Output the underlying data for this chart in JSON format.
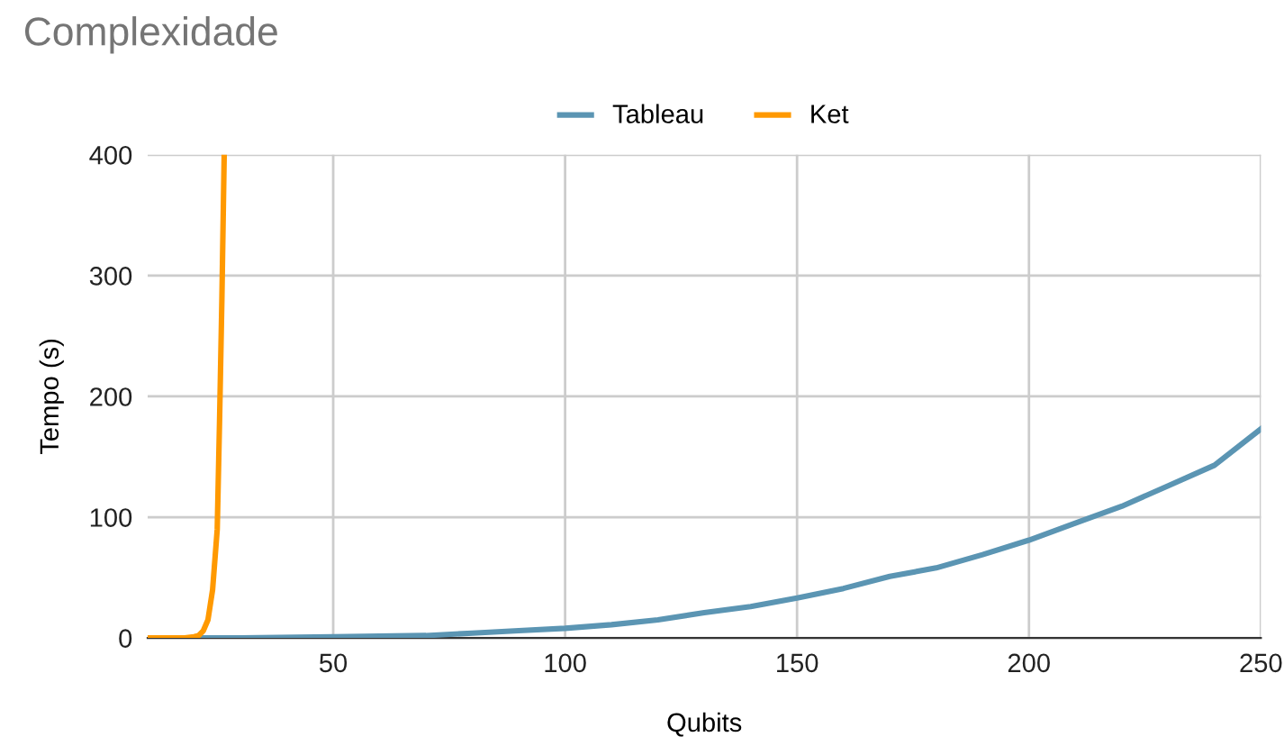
{
  "chart_data": {
    "type": "line",
    "title": "Complexidade",
    "xlabel": "Qubits",
    "ylabel": "Tempo (s)",
    "xlim": [
      10,
      250
    ],
    "xticks": [
      50,
      100,
      150,
      200,
      250
    ],
    "ylim": [
      0,
      400
    ],
    "yticks": [
      0,
      100,
      200,
      300,
      400
    ],
    "grid": true,
    "legend": "top",
    "marker": "none",
    "line_style": "solid",
    "series": [
      {
        "name": "Tableau",
        "color": "#5b95b3",
        "x": [
          10,
          30,
          50,
          70,
          80,
          90,
          100,
          110,
          120,
          130,
          140,
          150,
          160,
          170,
          180,
          190,
          200,
          210,
          220,
          230,
          240,
          250
        ],
        "values": [
          0,
          0,
          1,
          2,
          4,
          6,
          8,
          11,
          15,
          21,
          26,
          33,
          41,
          51,
          58,
          69,
          81,
          95,
          109,
          126,
          143,
          173
        ]
      },
      {
        "name": "Ket",
        "color": "#ff9900",
        "x": [
          10,
          18,
          20,
          21,
          22,
          23,
          24,
          25,
          25.5,
          26,
          26.5
        ],
        "values": [
          0,
          0,
          1,
          2,
          6,
          15,
          40,
          90,
          180,
          280,
          400
        ]
      }
    ]
  }
}
